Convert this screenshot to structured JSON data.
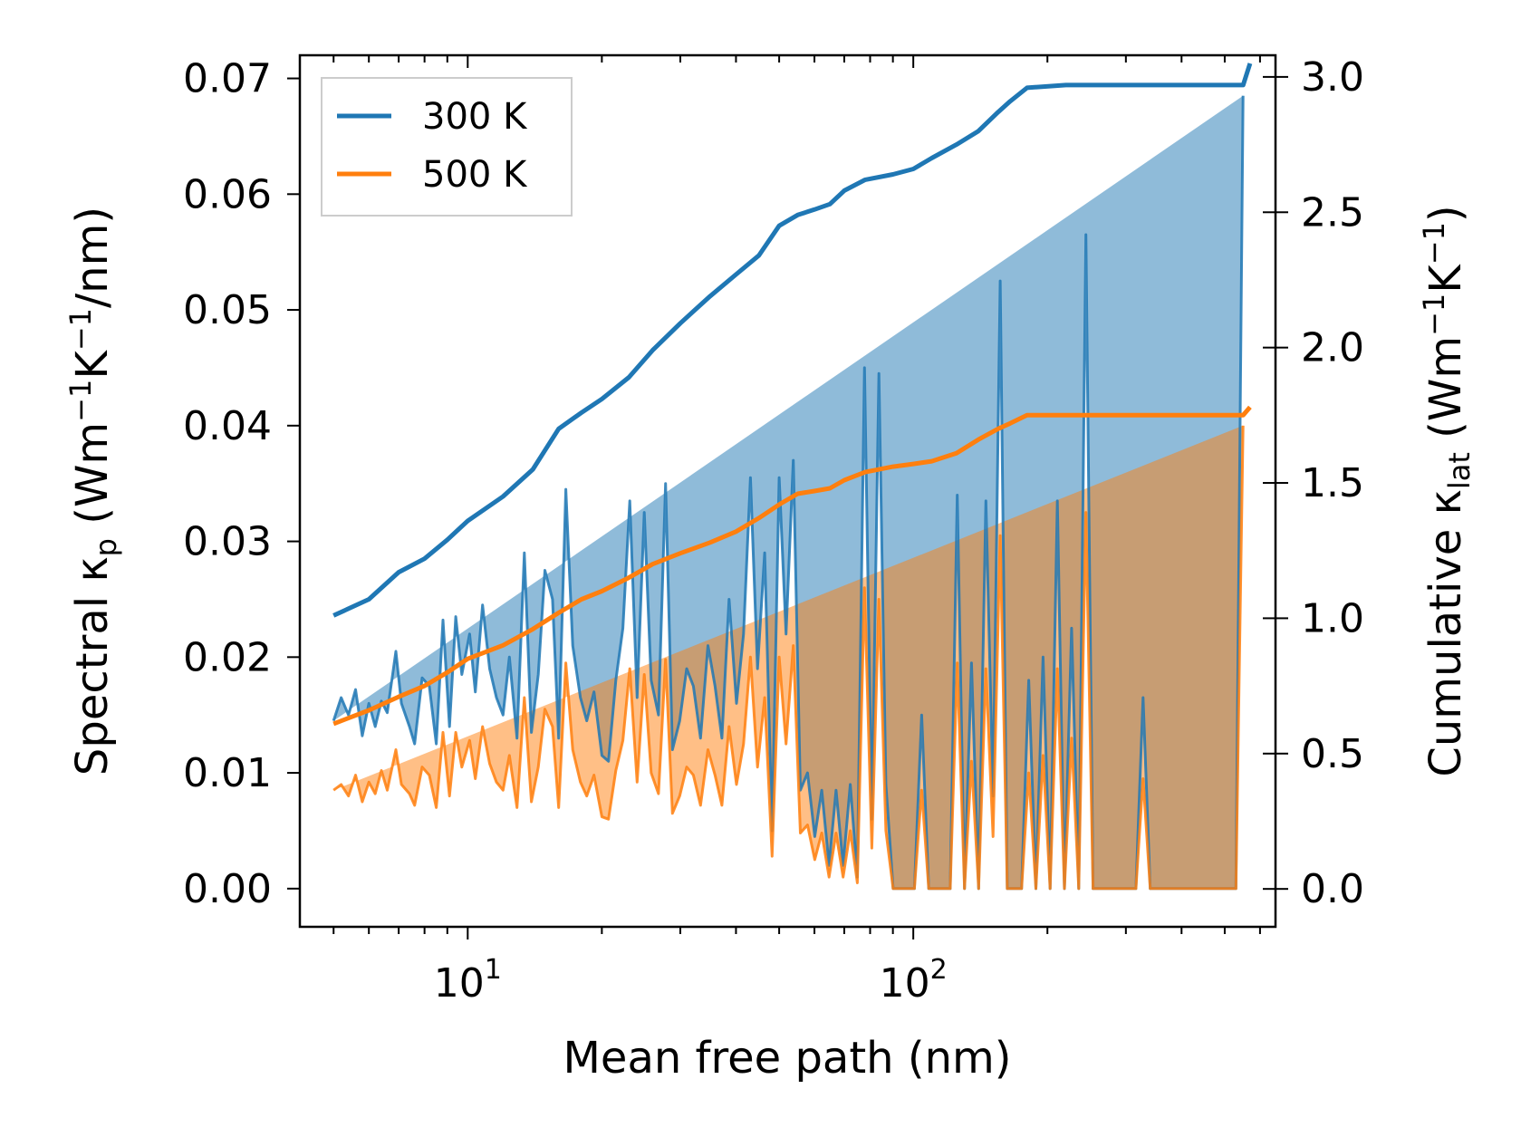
{
  "chart_data": {
    "type": "line",
    "xlabel": "Mean free path (nm)",
    "ylabel_left": {
      "base": "Spectral κ",
      "sub": "p",
      "units_prefix": "(Wm",
      "units_exp1": "−1",
      "units_mid": "K",
      "units_exp2": "−1",
      "units_suffix": "/nm)"
    },
    "ylabel_right": {
      "base": "Cumulative κ",
      "sub": "lat",
      "units_prefix": "(Wm",
      "units_exp1": "−1",
      "units_mid": "K",
      "units_exp2": "−1",
      "units_suffix": ")"
    },
    "xscale": "log",
    "xlim": [
      4.2,
      650
    ],
    "ylim_left": [
      -0.0033,
      0.072
    ],
    "ylim_right": [
      -0.14,
      3.08
    ],
    "x_ticks": [
      {
        "value": 10,
        "base": "10",
        "exp": "1"
      },
      {
        "value": 100,
        "base": "10",
        "exp": "2"
      }
    ],
    "y_left_ticks": [
      "0.00",
      "0.01",
      "0.02",
      "0.03",
      "0.04",
      "0.05",
      "0.06",
      "0.07"
    ],
    "y_right_ticks": [
      "0.0",
      "0.5",
      "1.0",
      "1.5",
      "2.0",
      "2.5",
      "3.0"
    ],
    "legend": {
      "position": "top-left",
      "entries": [
        "300 K",
        "500 K"
      ]
    },
    "colors": {
      "series_300": "#1f77b4",
      "series_500": "#ff7f0e",
      "fill_300": "#1f77b4",
      "fill_500": "#ff7f0e"
    },
    "spectral_x": [
      5.0,
      5.2,
      5.4,
      5.6,
      5.8,
      6.0,
      6.2,
      6.4,
      6.6,
      6.9,
      7.1,
      7.4,
      7.6,
      7.9,
      8.2,
      8.5,
      8.8,
      9.1,
      9.4,
      9.7,
      10.1,
      10.4,
      10.8,
      11.2,
      11.6,
      12.0,
      12.4,
      12.9,
      13.4,
      13.9,
      14.4,
      14.9,
      15.5,
      16.0,
      16.6,
      17.2,
      17.9,
      18.5,
      19.2,
      20.0,
      20.7,
      21.5,
      22.3,
      23.1,
      24.0,
      24.9,
      25.8,
      26.8,
      27.8,
      28.8,
      29.9,
      31.0,
      32.1,
      33.3,
      34.6,
      35.9,
      37.2,
      38.6,
      40.1,
      41.6,
      43.1,
      44.7,
      46.4,
      48.2,
      50.0,
      51.8,
      53.8,
      55.8,
      57.9,
      60.1,
      62.3,
      64.7,
      67.1,
      69.6,
      72.2,
      74.9,
      77.7,
      80.7,
      83.7,
      86.8,
      90.1,
      93.5,
      97.0,
      100.6,
      104.4,
      108.3,
      112.4,
      116.6,
      121.0,
      125.5,
      130.3,
      135.1,
      140.2,
      145.5,
      151.0,
      156.7,
      162.5,
      168.6,
      175.0,
      181.6,
      188.4,
      195.5,
      202.8,
      210.5,
      218.4,
      226.6,
      235.1,
      244.0,
      253.2,
      262.7,
      272.6,
      282.8,
      293.5,
      304.5,
      316.0,
      327.8,
      340.2,
      353.0,
      366.3,
      380.0,
      394.3,
      409.2,
      424.5,
      440.5,
      457.1,
      474.3,
      492.1,
      510.6,
      529.8,
      549.8,
      570.5
    ],
    "spectral_300": [
      0.0145,
      0.0165,
      0.015,
      0.0172,
      0.0132,
      0.016,
      0.014,
      0.0162,
      0.0152,
      0.0205,
      0.016,
      0.014,
      0.0125,
      0.0182,
      0.0175,
      0.0125,
      0.0232,
      0.014,
      0.0235,
      0.0185,
      0.022,
      0.017,
      0.0245,
      0.019,
      0.0165,
      0.015,
      0.02,
      0.013,
      0.029,
      0.0135,
      0.0185,
      0.0275,
      0.025,
      0.013,
      0.0345,
      0.021,
      0.0165,
      0.0145,
      0.017,
      0.0115,
      0.011,
      0.018,
      0.0225,
      0.0335,
      0.0165,
      0.0325,
      0.018,
      0.015,
      0.035,
      0.012,
      0.0145,
      0.019,
      0.0175,
      0.013,
      0.021,
      0.0175,
      0.013,
      0.025,
      0.016,
      0.022,
      0.0355,
      0.019,
      0.029,
      0.005,
      0.0355,
      0.022,
      0.037,
      0.0085,
      0.01,
      0.0045,
      0.0085,
      0.002,
      0.0085,
      0.002,
      0.009,
      0.001,
      0.045,
      0.006,
      0.0445,
      0.009,
      0.0,
      0.0,
      0.0,
      0.0,
      0.015,
      0.0,
      0.0,
      0.0,
      0.0,
      0.034,
      0.0,
      0.0195,
      0.0,
      0.0335,
      0.008,
      0.0525,
      0.0,
      0.0,
      0.0,
      0.018,
      0.0,
      0.02,
      0.0,
      0.0335,
      0.0,
      0.0225,
      0.0,
      0.0565,
      0.0,
      0.0,
      0.0,
      0.0,
      0.0,
      0.0,
      0.0,
      0.0165,
      0.0,
      0.0,
      0.0,
      0.0,
      0.0,
      0.0,
      0.0,
      0.0,
      0.0,
      0.0,
      0.0,
      0.0,
      0.0,
      0.0685
    ],
    "spectral_500": [
      0.0085,
      0.009,
      0.008,
      0.0098,
      0.0075,
      0.0092,
      0.0082,
      0.0102,
      0.0085,
      0.012,
      0.009,
      0.0082,
      0.0072,
      0.0105,
      0.0098,
      0.007,
      0.0135,
      0.008,
      0.0135,
      0.0105,
      0.0128,
      0.0095,
      0.014,
      0.0108,
      0.0092,
      0.0085,
      0.0115,
      0.007,
      0.0165,
      0.0075,
      0.0105,
      0.0155,
      0.014,
      0.007,
      0.0195,
      0.012,
      0.0092,
      0.008,
      0.0098,
      0.0062,
      0.006,
      0.0102,
      0.0128,
      0.019,
      0.0092,
      0.0185,
      0.01,
      0.0082,
      0.0198,
      0.0065,
      0.008,
      0.0105,
      0.0098,
      0.0072,
      0.012,
      0.0098,
      0.0072,
      0.014,
      0.009,
      0.0125,
      0.02,
      0.0105,
      0.0165,
      0.0028,
      0.02,
      0.0125,
      0.021,
      0.0048,
      0.0055,
      0.0025,
      0.0048,
      0.001,
      0.0048,
      0.001,
      0.005,
      0.0005,
      0.026,
      0.0035,
      0.025,
      0.005,
      0.0,
      0.0,
      0.0,
      0.0,
      0.0085,
      0.0,
      0.0,
      0.0,
      0.0,
      0.0195,
      0.0,
      0.011,
      0.0,
      0.019,
      0.0045,
      0.0305,
      0.0,
      0.0,
      0.0,
      0.01,
      0.0,
      0.0115,
      0.0,
      0.019,
      0.0,
      0.013,
      0.0,
      0.0325,
      0.0,
      0.0,
      0.0,
      0.0,
      0.0,
      0.0,
      0.0,
      0.0095,
      0.0,
      0.0,
      0.0,
      0.0,
      0.0,
      0.0,
      0.0,
      0.0,
      0.0,
      0.0,
      0.0,
      0.0,
      0.0,
      0.04
    ],
    "cumulative_x": [
      5.0,
      6.0,
      7.0,
      8.0,
      9.0,
      10.0,
      12.0,
      14.0,
      16.0,
      18.0,
      20.0,
      23.0,
      26.0,
      30.0,
      35.0,
      40.0,
      45.0,
      50.0,
      55.0,
      60.0,
      65.0,
      70.0,
      78.0,
      90.0,
      100.0,
      110.0,
      125.0,
      140.0,
      155.0,
      165.0,
      180.0,
      220.0,
      300.0,
      550.0,
      570.0
    ],
    "cumulative_300": [
      1.01,
      1.07,
      1.17,
      1.22,
      1.29,
      1.36,
      1.45,
      1.55,
      1.7,
      1.76,
      1.81,
      1.89,
      1.99,
      2.09,
      2.19,
      2.27,
      2.34,
      2.45,
      2.49,
      2.51,
      2.53,
      2.58,
      2.62,
      2.64,
      2.66,
      2.7,
      2.75,
      2.8,
      2.87,
      2.91,
      2.96,
      2.97,
      2.97,
      2.97,
      3.05
    ],
    "cumulative_500": [
      0.61,
      0.66,
      0.71,
      0.75,
      0.8,
      0.85,
      0.9,
      0.96,
      1.02,
      1.07,
      1.1,
      1.15,
      1.2,
      1.24,
      1.28,
      1.32,
      1.37,
      1.42,
      1.46,
      1.47,
      1.48,
      1.51,
      1.54,
      1.56,
      1.57,
      1.58,
      1.61,
      1.66,
      1.7,
      1.72,
      1.75,
      1.75,
      1.75,
      1.75,
      1.78
    ]
  }
}
